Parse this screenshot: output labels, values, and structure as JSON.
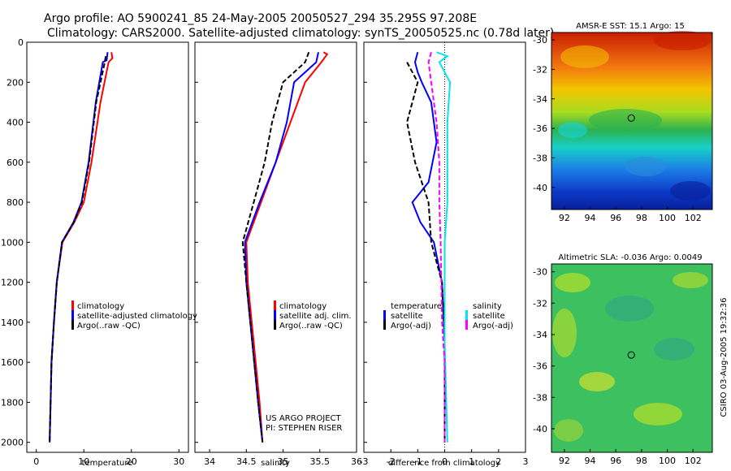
{
  "header": {
    "line1": "Argo profile: AO 5900241_85 24-May-2005 20050527_294 35.295S 97.208E",
    "line2": "Climatology: CARS2000. Satellite-adjusted climatology: synTS_20050525.nc (0.78d later)"
  },
  "side_label": "CSIRO 03-Aug-2005 19:32:36",
  "colors": {
    "climatology": "#ff0000",
    "satellite": "#0000ff",
    "argo": "#000000",
    "salinity": "#00e5ee",
    "salinity_argo": "#ff00ff"
  },
  "chart_data": [
    {
      "type": "line",
      "xlabel": "temperature",
      "ylabel": "",
      "xlim": [
        -2,
        32
      ],
      "ylim": [
        0,
        2050
      ],
      "y_inverted": true,
      "x_ticks": [
        "0",
        "10",
        "20",
        "30"
      ],
      "y_ticks": [
        "0",
        "200",
        "400",
        "600",
        "800",
        "1000",
        "1200",
        "1400",
        "1600",
        "1800",
        "2000"
      ],
      "legend": [
        "climatology",
        "satellite-adjusted climatology",
        "Argo(..raw -QC)"
      ],
      "series": [
        {
          "name": "climatology",
          "points": [
            [
              15.8,
              50
            ],
            [
              16.0,
              80
            ],
            [
              15.2,
              100
            ],
            [
              13.5,
              300
            ],
            [
              11.6,
              600
            ],
            [
              10.0,
              800
            ],
            [
              8.0,
              900
            ],
            [
              5.5,
              1000
            ],
            [
              4.3,
              1200
            ],
            [
              3.7,
              1400
            ],
            [
              3.2,
              1600
            ],
            [
              3.0,
              1800
            ],
            [
              2.8,
              2000
            ]
          ]
        },
        {
          "name": "satellite-adjusted climatology",
          "points": [
            [
              15.0,
              50
            ],
            [
              14.8,
              90
            ],
            [
              14.0,
              100
            ],
            [
              12.5,
              300
            ],
            [
              11.0,
              600
            ],
            [
              9.5,
              800
            ],
            [
              7.8,
              900
            ],
            [
              5.4,
              1000
            ],
            [
              4.3,
              1200
            ],
            [
              3.7,
              1400
            ],
            [
              3.2,
              1600
            ],
            [
              3.0,
              1800
            ],
            [
              2.8,
              2000
            ]
          ]
        },
        {
          "name": "Argo(..raw -QC)",
          "points": [
            [
              14.6,
              70
            ],
            [
              14.4,
              100
            ],
            [
              12.6,
              300
            ],
            [
              11.1,
              600
            ],
            [
              9.6,
              800
            ],
            [
              7.9,
              900
            ],
            [
              5.4,
              1000
            ],
            [
              4.3,
              1200
            ],
            [
              3.7,
              1400
            ],
            [
              3.2,
              1600
            ],
            [
              3.0,
              1800
            ],
            [
              2.8,
              2000
            ]
          ]
        }
      ]
    },
    {
      "type": "line",
      "xlabel": "salinity",
      "ylabel": "",
      "xlim": [
        33.8,
        36.0
      ],
      "ylim": [
        0,
        2050
      ],
      "y_inverted": true,
      "x_ticks": [
        "34",
        "34.5",
        "35",
        "35.5",
        "36"
      ],
      "legend": [
        "climatology",
        "satellite adj. clim.",
        "Argo(..raw -QC)"
      ],
      "annotation": [
        "US ARGO PROJECT",
        "PI: STEPHEN RISER"
      ],
      "series": [
        {
          "name": "climatology",
          "points": [
            [
              35.55,
              50
            ],
            [
              35.6,
              60
            ],
            [
              35.52,
              100
            ],
            [
              35.3,
              200
            ],
            [
              35.1,
              400
            ],
            [
              34.9,
              600
            ],
            [
              34.7,
              800
            ],
            [
              34.5,
              1000
            ],
            [
              34.52,
              1200
            ],
            [
              34.6,
              1500
            ],
            [
              34.68,
              1800
            ],
            [
              34.72,
              2000
            ]
          ]
        },
        {
          "name": "satellite adj. clim.",
          "points": [
            [
              35.48,
              50
            ],
            [
              35.45,
              100
            ],
            [
              35.15,
              200
            ],
            [
              35.05,
              400
            ],
            [
              34.9,
              600
            ],
            [
              34.68,
              800
            ],
            [
              34.48,
              1000
            ],
            [
              34.5,
              1200
            ],
            [
              34.58,
              1500
            ],
            [
              34.66,
              1800
            ],
            [
              34.72,
              2000
            ]
          ]
        },
        {
          "name": "Argo(..raw -QC)",
          "points": [
            [
              35.35,
              50
            ],
            [
              35.3,
              100
            ],
            [
              35.0,
              200
            ],
            [
              34.85,
              400
            ],
            [
              34.75,
              600
            ],
            [
              34.6,
              800
            ],
            [
              34.45,
              1000
            ],
            [
              34.5,
              1200
            ],
            [
              34.58,
              1500
            ],
            [
              34.66,
              1800
            ],
            [
              34.72,
              2000
            ]
          ]
        }
      ]
    },
    {
      "type": "line",
      "xlabel": "difference from climatology",
      "ylabel": "",
      "xlim": [
        -3,
        3
      ],
      "ylim": [
        0,
        2050
      ],
      "y_inverted": true,
      "x_ticks": [
        "-3",
        "-2",
        "-1",
        "0",
        "1",
        "2",
        "3"
      ],
      "legend": [
        "temperature",
        "satellite",
        "Argo(-adj)",
        "salinity",
        "satellite",
        "Argo(-adj)"
      ],
      "series": [
        {
          "name": "satellite",
          "points": [
            [
              -1.0,
              50
            ],
            [
              -1.1,
              100
            ],
            [
              -1.0,
              150
            ],
            [
              -0.85,
              200
            ],
            [
              -0.5,
              300
            ],
            [
              -0.3,
              500
            ],
            [
              -0.6,
              700
            ],
            [
              -1.2,
              800
            ],
            [
              -0.9,
              900
            ],
            [
              -0.4,
              1000
            ],
            [
              -0.1,
              1200
            ],
            [
              0.0,
              1500
            ],
            [
              0.0,
              2000
            ]
          ]
        },
        {
          "name": "Argo(-adj)",
          "points": [
            [
              -1.4,
              100
            ],
            [
              -1.0,
              200
            ],
            [
              -1.4,
              400
            ],
            [
              -1.1,
              600
            ],
            [
              -0.6,
              800
            ],
            [
              -0.5,
              1000
            ],
            [
              -0.1,
              1200
            ],
            [
              0.0,
              1500
            ],
            [
              0.0,
              2000
            ]
          ]
        },
        {
          "name": "salinity satellite",
          "points": [
            [
              -0.3,
              50
            ],
            [
              0.1,
              70
            ],
            [
              -0.2,
              100
            ],
            [
              0.0,
              150
            ],
            [
              0.2,
              200
            ],
            [
              0.1,
              400
            ],
            [
              0.1,
              600
            ],
            [
              0.1,
              800
            ],
            [
              0.0,
              1000
            ],
            [
              0.0,
              1500
            ],
            [
              0.1,
              2000
            ]
          ]
        },
        {
          "name": "salinity Argo(-adj)",
          "points": [
            [
              -0.5,
              50
            ],
            [
              -0.6,
              100
            ],
            [
              -0.5,
              200
            ],
            [
              -0.3,
              400
            ],
            [
              -0.2,
              600
            ],
            [
              -0.2,
              800
            ],
            [
              -0.15,
              1000
            ],
            [
              -0.1,
              1400
            ],
            [
              0.0,
              1600
            ],
            [
              0.0,
              2000
            ]
          ]
        }
      ]
    },
    {
      "type": "heatmap",
      "title": "AMSR-E SST: 15.1 Argo: 15",
      "xlim": [
        91,
        103.5
      ],
      "ylim": [
        -41.5,
        -29.5
      ],
      "x_ticks": [
        "92",
        "94",
        "96",
        "98",
        "100",
        "102"
      ],
      "y_ticks": [
        "-30",
        "-32",
        "-34",
        "-36",
        "-38",
        "-40"
      ],
      "marker": [
        97.2,
        -35.3
      ]
    },
    {
      "type": "heatmap",
      "title": "Altimetric SLA: -0.036 Argo: 0.0049",
      "xlim": [
        91,
        103.5
      ],
      "ylim": [
        -41.5,
        -29.5
      ],
      "x_ticks": [
        "92",
        "94",
        "96",
        "98",
        "100",
        "102"
      ],
      "y_ticks": [
        "-30",
        "-32",
        "-34",
        "-36",
        "-38",
        "-40"
      ],
      "marker": [
        97.2,
        -35.3
      ]
    }
  ]
}
